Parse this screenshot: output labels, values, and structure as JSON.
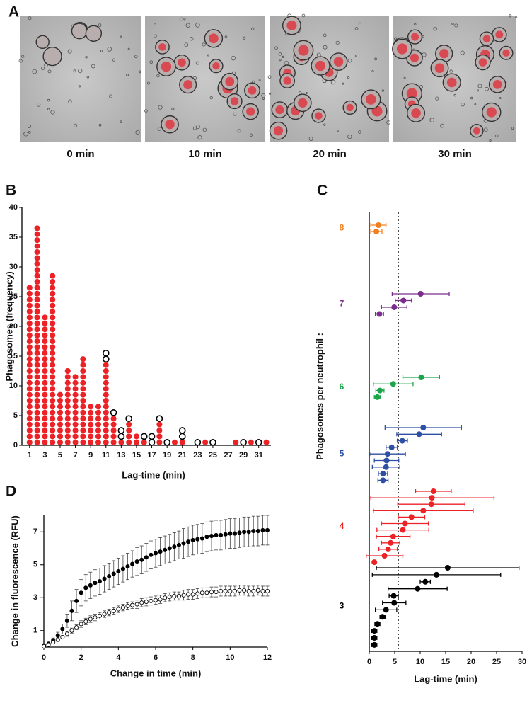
{
  "panel_a": {
    "label": "A",
    "captions": [
      "0 min",
      "10 min",
      "20 min",
      "30 min"
    ]
  },
  "chart_data": [
    {
      "panel_label": "B",
      "type": "dot_histogram",
      "x": [
        1,
        2,
        3,
        4,
        5,
        6,
        7,
        8,
        9,
        10,
        11,
        12,
        13,
        14,
        15,
        16,
        17,
        18,
        19,
        20,
        21,
        22,
        23,
        24,
        25,
        26,
        27,
        28,
        29,
        30,
        31,
        32
      ],
      "xlim": [
        0,
        32.6
      ],
      "xticks": [
        1,
        3,
        5,
        7,
        9,
        11,
        13,
        15,
        17,
        19,
        21,
        23,
        25,
        27,
        29,
        31
      ],
      "ylim": [
        0,
        40
      ],
      "yticks": [
        0,
        5,
        10,
        15,
        20,
        25,
        30,
        35,
        40
      ],
      "xlabel": "Lag-time (min)",
      "ylabel": "Phagosomes (frequency)",
      "series": [
        {
          "color": "#ec2227",
          "fill": true,
          "values": [
            27,
            37,
            22,
            29,
            9,
            13,
            12,
            15,
            7,
            7,
            14,
            5,
            1,
            4,
            2,
            1,
            0,
            4,
            0,
            1,
            1,
            0,
            0,
            1,
            0,
            0,
            0,
            1,
            0,
            1,
            0,
            1
          ]
        },
        {
          "color": "#000000",
          "fill": false,
          "values": [
            0,
            0,
            0,
            0,
            0,
            0,
            0,
            0,
            0,
            0,
            2,
            1,
            2,
            1,
            0,
            1,
            2,
            1,
            1,
            0,
            2,
            0,
            1,
            0,
            1,
            0,
            0,
            0,
            1,
            0,
            1,
            0
          ]
        }
      ]
    },
    {
      "panel_label": "C",
      "type": "forest",
      "xlim": [
        0,
        30
      ],
      "xticks": [
        0,
        5,
        10,
        15,
        20,
        25,
        30
      ],
      "xlabel": "Lag-time (min)",
      "ylabel": "Phagosomes per neutrophil :",
      "reference_line": 5.7,
      "series": [
        {
          "name": "8",
          "color": "#f07f22",
          "values": [
            1.8,
            1.4
          ],
          "errors": [
            1.5,
            1.1
          ]
        },
        {
          "name": "7",
          "color": "#7b2d8e",
          "values": [
            10.1,
            6.7,
            4.9,
            2.0
          ],
          "errors": [
            5.6,
            1.6,
            2.5,
            0.8
          ]
        },
        {
          "name": "6",
          "color": "#1aa54a",
          "values": [
            10.2,
            4.7,
            2.1,
            1.6
          ],
          "errors": [
            3.6,
            3.9,
            0.8,
            0.6
          ]
        },
        {
          "name": "5",
          "color": "#2e4fa3",
          "values": [
            10.6,
            9.8,
            6.5,
            4.4,
            3.6,
            3.4,
            3.3,
            2.7,
            2.7
          ],
          "errors": [
            7.5,
            4.4,
            1.0,
            1.1,
            3.5,
            2.4,
            2.7,
            0.9,
            1.0
          ]
        },
        {
          "name": "4",
          "color": "#ec2227",
          "values": [
            12.6,
            12.3,
            12.2,
            10.6,
            8.3,
            7.0,
            6.6,
            4.7,
            4.2,
            3.7,
            3.0,
            1.0
          ],
          "errors": [
            3.5,
            12.2,
            6.6,
            9.8,
            2.6,
            4.6,
            5.1,
            3.3,
            1.8,
            1.8,
            3.6,
            0
          ]
        },
        {
          "name": "3",
          "color": "#000000",
          "values": [
            15.4,
            13.2,
            11.0,
            9.5,
            4.8,
            4.9,
            3.3,
            2.6,
            1.6,
            1.0,
            1.0,
            1.0
          ],
          "errors": [
            14.0,
            12.6,
            1.0,
            5.8,
            0.9,
            2.3,
            2.1,
            0.5,
            0.5,
            0.5,
            0.5,
            0.5
          ]
        }
      ]
    },
    {
      "panel_label": "D",
      "type": "errorbar_scatter",
      "x": [
        0,
        0.25,
        0.5,
        0.75,
        1,
        1.25,
        1.5,
        1.75,
        2,
        2.25,
        2.5,
        2.75,
        3,
        3.25,
        3.5,
        3.75,
        4,
        4.25,
        4.5,
        4.75,
        5,
        5.25,
        5.5,
        5.75,
        6,
        6.25,
        6.5,
        6.75,
        7,
        7.25,
        7.5,
        7.75,
        8,
        8.25,
        8.5,
        8.75,
        9,
        9.25,
        9.5,
        9.75,
        10,
        10.25,
        10.5,
        10.75,
        11,
        11.25,
        11.5,
        11.75,
        12
      ],
      "xlim": [
        0,
        12
      ],
      "xticks": [
        0,
        2,
        4,
        6,
        8,
        10,
        12
      ],
      "ylim": [
        0,
        8
      ],
      "yticks": [
        1,
        3,
        5,
        7
      ],
      "xlabel": "Change in time (min)",
      "ylabel": "Change in fluorescence (RFU)",
      "series": [
        {
          "color": "#000000",
          "fill": true,
          "values": [
            0.1,
            0.2,
            0.4,
            0.7,
            1.1,
            1.6,
            2.2,
            2.8,
            3.3,
            3.6,
            3.75,
            3.9,
            4.0,
            4.15,
            4.3,
            4.45,
            4.6,
            4.75,
            4.9,
            5.05,
            5.2,
            5.3,
            5.45,
            5.6,
            5.7,
            5.8,
            5.9,
            6.0,
            6.1,
            6.2,
            6.3,
            6.4,
            6.5,
            6.55,
            6.6,
            6.7,
            6.75,
            6.8,
            6.8,
            6.85,
            6.9,
            6.9,
            6.95,
            7.0,
            7.0,
            7.05,
            7.05,
            7.1,
            7.1
          ],
          "errors": [
            0.05,
            0.1,
            0.15,
            0.2,
            0.3,
            0.4,
            0.6,
            0.7,
            0.8,
            0.8,
            0.8,
            0.8,
            0.8,
            0.8,
            0.8,
            0.8,
            0.8,
            0.8,
            0.8,
            0.8,
            0.85,
            0.85,
            0.85,
            0.85,
            0.85,
            0.85,
            0.85,
            0.85,
            0.85,
            0.85,
            0.9,
            0.9,
            0.9,
            0.9,
            0.9,
            0.9,
            0.9,
            0.9,
            0.9,
            0.9,
            0.9,
            0.9,
            0.9,
            0.9,
            0.9,
            0.9,
            0.9,
            0.9,
            0.9
          ]
        },
        {
          "color": "#000000",
          "fill": false,
          "values": [
            0.05,
            0.15,
            0.3,
            0.45,
            0.6,
            0.8,
            1.0,
            1.2,
            1.4,
            1.55,
            1.7,
            1.8,
            1.9,
            2.0,
            2.1,
            2.2,
            2.3,
            2.4,
            2.5,
            2.55,
            2.6,
            2.7,
            2.75,
            2.8,
            2.85,
            2.9,
            3.0,
            3.05,
            3.1,
            3.1,
            3.15,
            3.2,
            3.2,
            3.25,
            3.3,
            3.3,
            3.35,
            3.35,
            3.4,
            3.4,
            3.4,
            3.4,
            3.45,
            3.45,
            3.4,
            3.4,
            3.45,
            3.4,
            3.4
          ],
          "errors": [
            0.05,
            0.05,
            0.1,
            0.1,
            0.1,
            0.15,
            0.15,
            0.15,
            0.2,
            0.2,
            0.2,
            0.2,
            0.2,
            0.2,
            0.2,
            0.2,
            0.2,
            0.2,
            0.2,
            0.2,
            0.25,
            0.25,
            0.25,
            0.25,
            0.25,
            0.25,
            0.25,
            0.25,
            0.25,
            0.25,
            0.3,
            0.3,
            0.3,
            0.3,
            0.3,
            0.3,
            0.3,
            0.3,
            0.3,
            0.3,
            0.3,
            0.3,
            0.3,
            0.3,
            0.3,
            0.3,
            0.3,
            0.3,
            0.3
          ]
        }
      ]
    }
  ]
}
